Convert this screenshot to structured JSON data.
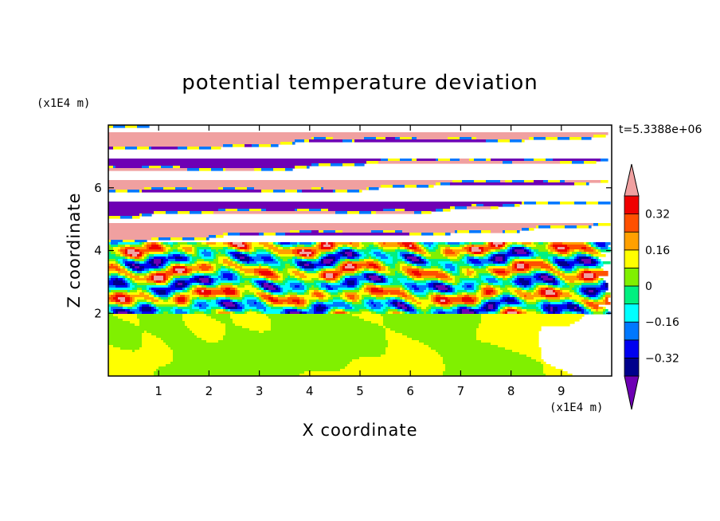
{
  "chart_data": {
    "type": "heatmap",
    "title": "potential temperature deviation",
    "xlabel": "X coordinate",
    "ylabel": "Z coordinate",
    "x_unit": "(x1E4 m)",
    "y_unit": "(x1E4 m)",
    "time_label": "t=5.3388e+06",
    "xlim": [
      0,
      10
    ],
    "ylim": [
      0,
      8
    ],
    "x_ticks": [
      1,
      2,
      3,
      4,
      5,
      6,
      7,
      8,
      9
    ],
    "x_tick_labels": [
      "1",
      "2",
      "3",
      "4",
      "5",
      "6",
      "7",
      "8",
      "9"
    ],
    "y_ticks": [
      2,
      4,
      6
    ],
    "y_tick_labels": [
      "2",
      "4",
      "6"
    ],
    "colorbar": {
      "levels": [
        -0.4,
        -0.32,
        -0.24,
        -0.16,
        -0.08,
        0,
        0.08,
        0.16,
        0.24,
        0.32,
        0.4
      ],
      "tick_values": [
        0.32,
        0.16,
        0,
        -0.16,
        -0.32
      ],
      "tick_labels": [
        "0.32",
        "0.16",
        "0",
        "−0.16",
        "−0.32"
      ],
      "colors": [
        "#6e00b4",
        "#00008c",
        "#0000f0",
        "#0078ff",
        "#00ffff",
        "#00f080",
        "#80f000",
        "#ffff00",
        "#ffa000",
        "#ff5000",
        "#f00000",
        "#f0a0a0"
      ],
      "extend": "both"
    },
    "regions": [
      {
        "z_range": [
          0,
          2
        ],
        "description_value": "near 0",
        "colors_present": [
          "#00f080",
          "#80f000"
        ]
      },
      {
        "z_range": [
          2,
          4.3
        ],
        "description_value": "mixed",
        "colors_present": [
          "#00ffff",
          "#0078ff",
          "#00008c",
          "#80f000",
          "#ffff00",
          "#ff5000",
          "#f0a0a0"
        ]
      },
      {
        "z_range": [
          4.3,
          8
        ],
        "description_value": "alternating layers",
        "colors_present": [
          "#f0a0a0",
          "#6e00b4"
        ]
      }
    ]
  }
}
